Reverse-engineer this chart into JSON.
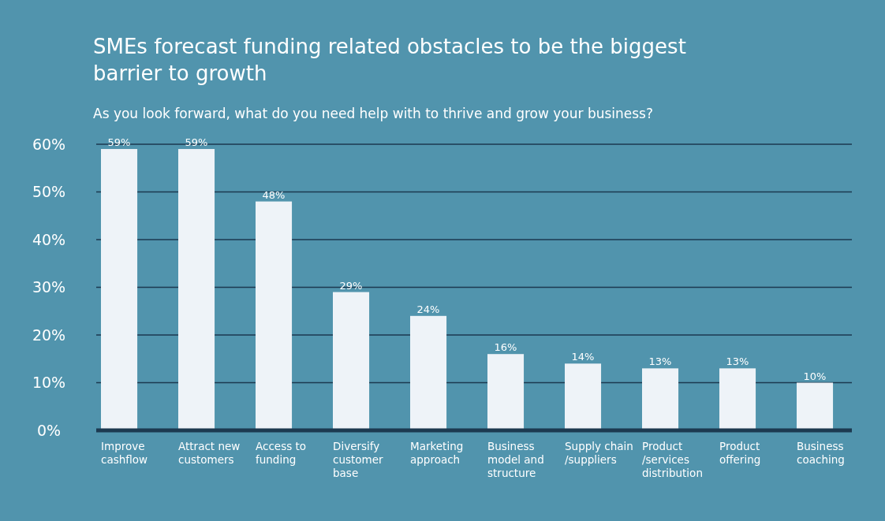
{
  "chart_data": {
    "type": "bar",
    "title": "SMEs forecast funding related obstacles to be the biggest barrier to growth",
    "subtitle": "As you look forward, what do you need help with to thrive and grow your business?",
    "categories": [
      "Improve cashflow",
      "Attract new customers",
      "Access to funding",
      "Diversify customer base",
      "Marketing approach",
      "Business model and structure",
      "Supply chain /suppliers",
      "Product /services distribution",
      "Product offering",
      "Business coaching"
    ],
    "values": [
      59,
      59,
      48,
      29,
      24,
      16,
      14,
      13,
      13,
      10
    ],
    "value_labels": [
      "59%",
      "59%",
      "48%",
      "29%",
      "24%",
      "16%",
      "14%",
      "13%",
      "13%",
      "10%"
    ],
    "color": "#eef3f8",
    "ylim": [
      0,
      60
    ],
    "yticks": [
      {
        "value": 0,
        "label": "0%"
      },
      {
        "value": 10,
        "label": "10%"
      },
      {
        "value": 20,
        "label": "20%"
      },
      {
        "value": 30,
        "label": "30%"
      },
      {
        "value": 40,
        "label": "40%"
      },
      {
        "value": 50,
        "label": "50%"
      },
      {
        "value": 60,
        "label": "60%"
      }
    ],
    "grid": "y",
    "legend": false
  }
}
